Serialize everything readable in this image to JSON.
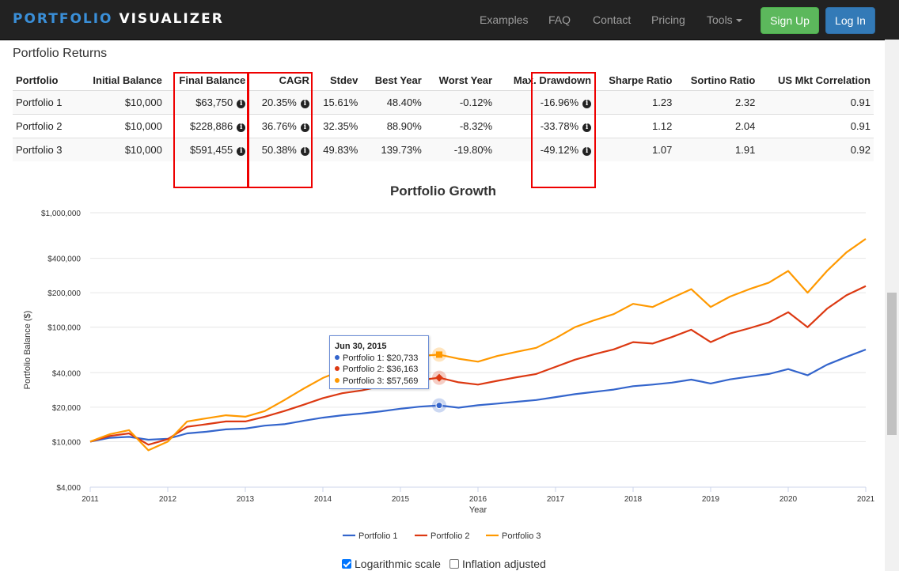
{
  "nav": {
    "brand_a": "PORTFOLIO",
    "brand_b": "VISUALIZER",
    "links": [
      "Examples",
      "FAQ",
      "Contact",
      "Pricing",
      "Tools"
    ],
    "signup": "Sign Up",
    "login": "Log In"
  },
  "section_title": "Portfolio Returns",
  "table": {
    "headers": [
      "Portfolio",
      "Initial Balance",
      "Final Balance",
      "CAGR",
      "Stdev",
      "Best Year",
      "Worst Year",
      "Max. Drawdown",
      "Sharpe Ratio",
      "Sortino Ratio",
      "US Mkt Correlation"
    ],
    "rows": [
      [
        "Portfolio 1",
        "$10,000",
        "$63,750",
        "20.35%",
        "15.61%",
        "48.40%",
        "-0.12%",
        "-16.96%",
        "1.23",
        "2.32",
        "0.91"
      ],
      [
        "Portfolio 2",
        "$10,000",
        "$228,886",
        "36.76%",
        "32.35%",
        "88.90%",
        "-8.32%",
        "-33.78%",
        "1.12",
        "2.04",
        "0.91"
      ],
      [
        "Portfolio 3",
        "$10,000",
        "$591,455",
        "50.38%",
        "49.83%",
        "139.73%",
        "-19.80%",
        "-49.12%",
        "1.07",
        "1.91",
        "0.92"
      ]
    ],
    "info_icon": "i"
  },
  "chart_data": {
    "type": "line",
    "title": "Portfolio Growth",
    "xlabel": "Year",
    "ylabel": "Portfolio Balance ($)",
    "yscale": "log",
    "ylim": [
      4000,
      1000000
    ],
    "y_ticks": [
      4000,
      10000,
      20000,
      40000,
      100000,
      200000,
      400000,
      1000000
    ],
    "y_tick_labels": [
      "$4,000",
      "$10,000",
      "$20,000",
      "$40,000",
      "$100,000",
      "$200,000",
      "$400,000",
      "$1,000,000"
    ],
    "x_ticks": [
      "2011",
      "2012",
      "2013",
      "2014",
      "2015",
      "2016",
      "2017",
      "2018",
      "2019",
      "2020",
      "2021"
    ],
    "grid": true,
    "legend_position": "bottom",
    "series": [
      {
        "name": "Portfolio 1",
        "color": "#3465cc",
        "points": [
          [
            2011.0,
            10000
          ],
          [
            2011.25,
            10800
          ],
          [
            2011.5,
            11000
          ],
          [
            2011.75,
            10400
          ],
          [
            2012.0,
            10600
          ],
          [
            2012.25,
            11800
          ],
          [
            2012.5,
            12200
          ],
          [
            2012.75,
            12800
          ],
          [
            2013.0,
            13000
          ],
          [
            2013.25,
            13800
          ],
          [
            2013.5,
            14200
          ],
          [
            2013.75,
            15200
          ],
          [
            2014.0,
            16200
          ],
          [
            2014.25,
            17000
          ],
          [
            2014.5,
            17600
          ],
          [
            2014.75,
            18400
          ],
          [
            2015.0,
            19400
          ],
          [
            2015.25,
            20200
          ],
          [
            2015.5,
            20733
          ],
          [
            2015.75,
            19800
          ],
          [
            2016.0,
            20800
          ],
          [
            2016.25,
            21500
          ],
          [
            2016.5,
            22300
          ],
          [
            2016.75,
            23100
          ],
          [
            2017.0,
            24500
          ],
          [
            2017.25,
            26000
          ],
          [
            2017.5,
            27200
          ],
          [
            2017.75,
            28500
          ],
          [
            2018.0,
            30500
          ],
          [
            2018.25,
            31500
          ],
          [
            2018.5,
            32800
          ],
          [
            2018.75,
            34800
          ],
          [
            2019.0,
            32200
          ],
          [
            2019.25,
            35000
          ],
          [
            2019.5,
            37000
          ],
          [
            2019.75,
            39000
          ],
          [
            2020.0,
            43000
          ],
          [
            2020.25,
            38000
          ],
          [
            2020.5,
            47000
          ],
          [
            2020.75,
            55000
          ],
          [
            2021.0,
            63750
          ]
        ]
      },
      {
        "name": "Portfolio 2",
        "color": "#dc3912",
        "points": [
          [
            2011.0,
            10000
          ],
          [
            2011.25,
            11200
          ],
          [
            2011.5,
            11800
          ],
          [
            2011.75,
            9400
          ],
          [
            2012.0,
            10500
          ],
          [
            2012.25,
            13500
          ],
          [
            2012.5,
            14200
          ],
          [
            2012.75,
            15000
          ],
          [
            2013.0,
            15000
          ],
          [
            2013.25,
            16500
          ],
          [
            2013.5,
            18500
          ],
          [
            2013.75,
            21000
          ],
          [
            2014.0,
            24000
          ],
          [
            2014.25,
            26500
          ],
          [
            2014.5,
            28000
          ],
          [
            2014.75,
            30500
          ],
          [
            2015.0,
            32000
          ],
          [
            2015.25,
            34500
          ],
          [
            2015.5,
            36163
          ],
          [
            2015.75,
            33000
          ],
          [
            2016.0,
            31500
          ],
          [
            2016.25,
            34000
          ],
          [
            2016.5,
            36500
          ],
          [
            2016.75,
            39000
          ],
          [
            2017.0,
            45000
          ],
          [
            2017.25,
            52000
          ],
          [
            2017.5,
            58000
          ],
          [
            2017.75,
            64000
          ],
          [
            2018.0,
            74000
          ],
          [
            2018.25,
            72000
          ],
          [
            2018.5,
            82000
          ],
          [
            2018.75,
            95000
          ],
          [
            2019.0,
            74000
          ],
          [
            2019.25,
            88000
          ],
          [
            2019.5,
            98000
          ],
          [
            2019.75,
            110000
          ],
          [
            2020.0,
            135000
          ],
          [
            2020.25,
            100000
          ],
          [
            2020.5,
            145000
          ],
          [
            2020.75,
            190000
          ],
          [
            2021.0,
            228886
          ]
        ]
      },
      {
        "name": "Portfolio 3",
        "color": "#ff9900",
        "points": [
          [
            2011.0,
            10000
          ],
          [
            2011.25,
            11600
          ],
          [
            2011.5,
            12600
          ],
          [
            2011.75,
            8400
          ],
          [
            2012.0,
            10000
          ],
          [
            2012.25,
            15000
          ],
          [
            2012.5,
            16000
          ],
          [
            2012.75,
            17000
          ],
          [
            2013.0,
            16500
          ],
          [
            2013.25,
            18500
          ],
          [
            2013.5,
            23000
          ],
          [
            2013.75,
            29000
          ],
          [
            2014.0,
            36000
          ],
          [
            2014.25,
            42000
          ],
          [
            2014.5,
            45000
          ],
          [
            2014.75,
            50000
          ],
          [
            2015.0,
            53000
          ],
          [
            2015.25,
            56000
          ],
          [
            2015.5,
            57569
          ],
          [
            2015.75,
            53000
          ],
          [
            2016.0,
            50000
          ],
          [
            2016.25,
            56000
          ],
          [
            2016.5,
            61000
          ],
          [
            2016.75,
            66000
          ],
          [
            2017.0,
            80000
          ],
          [
            2017.25,
            100000
          ],
          [
            2017.5,
            115000
          ],
          [
            2017.75,
            130000
          ],
          [
            2018.0,
            160000
          ],
          [
            2018.25,
            150000
          ],
          [
            2018.5,
            180000
          ],
          [
            2018.75,
            215000
          ],
          [
            2019.0,
            150000
          ],
          [
            2019.25,
            185000
          ],
          [
            2019.5,
            215000
          ],
          [
            2019.75,
            245000
          ],
          [
            2020.0,
            310000
          ],
          [
            2020.25,
            200000
          ],
          [
            2020.5,
            310000
          ],
          [
            2020.75,
            450000
          ],
          [
            2021.0,
            591455
          ]
        ]
      }
    ],
    "tooltip": {
      "date": "Jun 30, 2015",
      "lines": [
        "Portfolio 1: $20,733",
        "Portfolio 2: $36,163",
        "Portfolio 3: $57,569"
      ]
    }
  },
  "options": {
    "log_label": "Logarithmic scale",
    "log_checked": true,
    "inflation_label": "Inflation adjusted",
    "inflation_checked": false
  }
}
